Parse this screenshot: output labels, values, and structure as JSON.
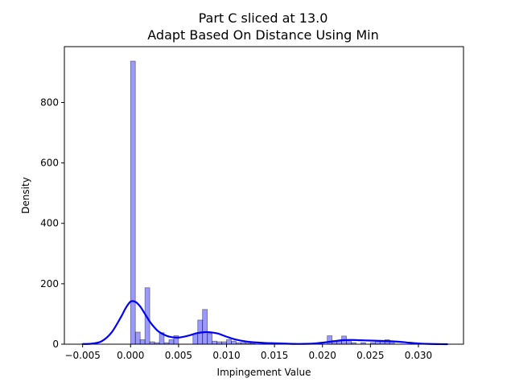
{
  "chart_data": {
    "type": "bar",
    "title": "Part C sliced at 13.0",
    "subtitle": "Adapt Based On Distance   Using Min",
    "xlabel": "Impingement Value",
    "ylabel": "Density",
    "xlim": [
      -0.0069,
      0.0347
    ],
    "ylim": [
      0,
      985
    ],
    "xticks": [
      -0.005,
      0.0,
      0.005,
      0.01,
      0.015,
      0.02,
      0.025,
      0.03
    ],
    "xtick_labels": [
      "−0.005",
      "0.000",
      "0.005",
      "0.010",
      "0.015",
      "0.020",
      "0.025",
      "0.030"
    ],
    "yticks": [
      0,
      200,
      400,
      600,
      800
    ],
    "ytick_labels": [
      "0",
      "200",
      "400",
      "600",
      "800"
    ],
    "grid": false,
    "histogram": {
      "bin_width": 0.0005,
      "color": "#0000ff",
      "bins": [
        {
          "x0": 0.0,
          "height": 937
        },
        {
          "x0": 0.0005,
          "height": 40
        },
        {
          "x0": 0.001,
          "height": 15
        },
        {
          "x0": 0.0015,
          "height": 187
        },
        {
          "x0": 0.002,
          "height": 8
        },
        {
          "x0": 0.0025,
          "height": 5
        },
        {
          "x0": 0.003,
          "height": 38
        },
        {
          "x0": 0.0035,
          "height": 5
        },
        {
          "x0": 0.004,
          "height": 15
        },
        {
          "x0": 0.0045,
          "height": 28
        },
        {
          "x0": 0.0065,
          "height": 35
        },
        {
          "x0": 0.007,
          "height": 80
        },
        {
          "x0": 0.0075,
          "height": 115
        },
        {
          "x0": 0.008,
          "height": 35
        },
        {
          "x0": 0.0085,
          "height": 10
        },
        {
          "x0": 0.009,
          "height": 8
        },
        {
          "x0": 0.0095,
          "height": 8
        },
        {
          "x0": 0.01,
          "height": 15
        },
        {
          "x0": 0.0105,
          "height": 10
        },
        {
          "x0": 0.011,
          "height": 5
        },
        {
          "x0": 0.0115,
          "height": 5
        },
        {
          "x0": 0.012,
          "height": 3
        },
        {
          "x0": 0.0125,
          "height": 3
        },
        {
          "x0": 0.014,
          "height": 3
        },
        {
          "x0": 0.0205,
          "height": 28
        },
        {
          "x0": 0.021,
          "height": 12
        },
        {
          "x0": 0.0215,
          "height": 10
        },
        {
          "x0": 0.022,
          "height": 27
        },
        {
          "x0": 0.0225,
          "height": 15
        },
        {
          "x0": 0.023,
          "height": 5
        },
        {
          "x0": 0.024,
          "height": 5
        },
        {
          "x0": 0.025,
          "height": 5
        },
        {
          "x0": 0.0255,
          "height": 12
        },
        {
          "x0": 0.026,
          "height": 10
        },
        {
          "x0": 0.0265,
          "height": 15
        },
        {
          "x0": 0.027,
          "height": 8
        }
      ]
    },
    "kde": {
      "color": "#0000ff",
      "x": [
        -0.005,
        -0.004,
        -0.003,
        -0.002,
        -0.001,
        -0.0005,
        0.0,
        0.0005,
        0.001,
        0.0015,
        0.002,
        0.0025,
        0.003,
        0.004,
        0.005,
        0.006,
        0.007,
        0.008,
        0.009,
        0.01,
        0.011,
        0.012,
        0.013,
        0.014,
        0.015,
        0.016,
        0.017,
        0.018,
        0.019,
        0.02,
        0.021,
        0.022,
        0.023,
        0.024,
        0.025,
        0.026,
        0.027,
        0.028,
        0.029,
        0.03,
        0.031,
        0.032,
        0.033
      ],
      "y": [
        0.5,
        2,
        10,
        38,
        90,
        120,
        141,
        140,
        125,
        100,
        75,
        55,
        40,
        25,
        22,
        28,
        37,
        40,
        36,
        25,
        15,
        9,
        6,
        4,
        3,
        2,
        1,
        1,
        2,
        5,
        9,
        13,
        14,
        13,
        12,
        11,
        10,
        8,
        5,
        2.5,
        1,
        0.3,
        0
      ]
    }
  }
}
